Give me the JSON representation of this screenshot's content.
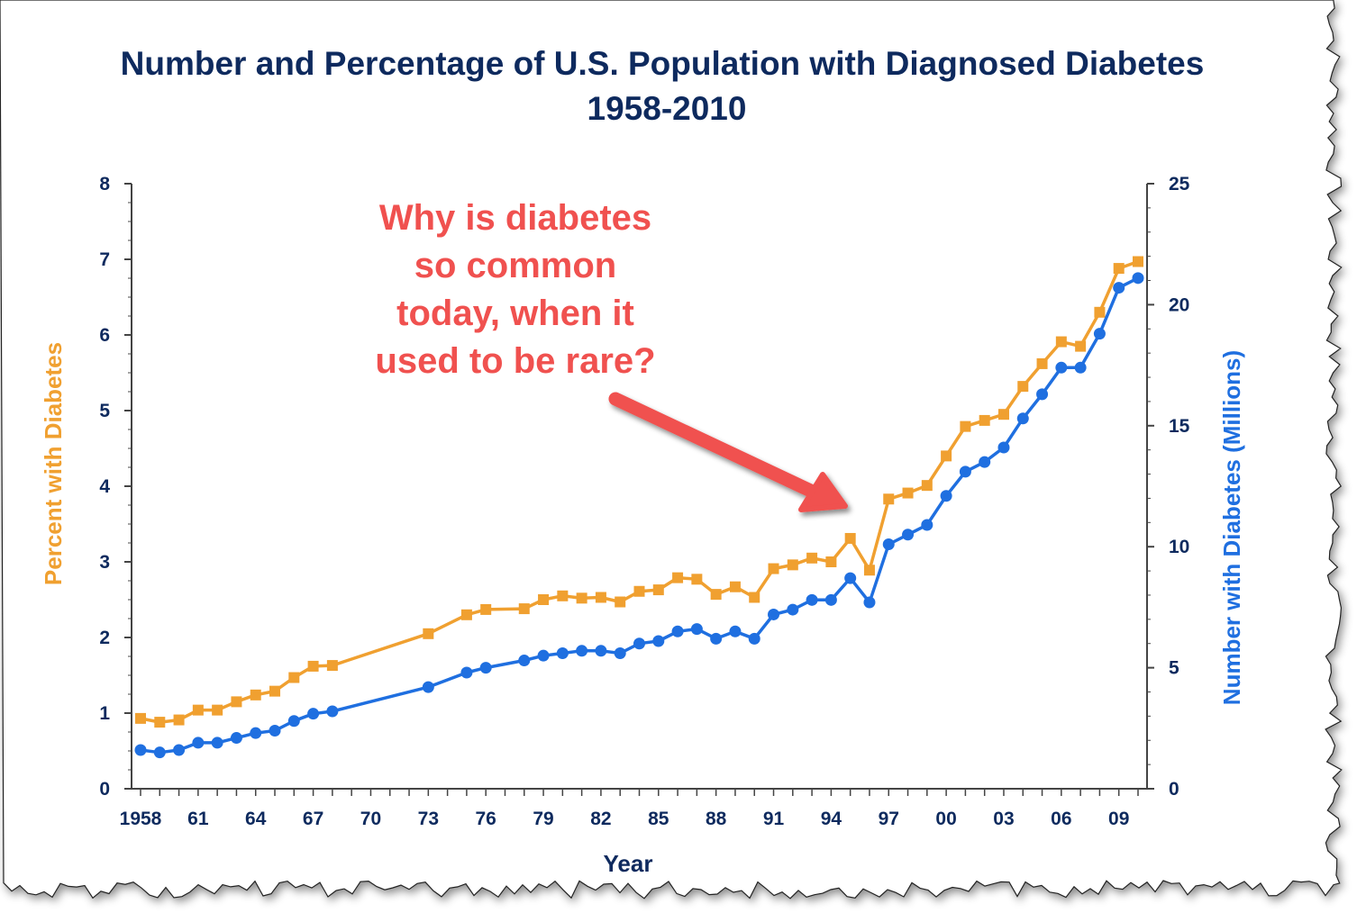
{
  "chart_data": {
    "type": "line",
    "title": "Number and Percentage of U.S. Population with Diagnosed Diabetes",
    "subtitle": "1958-2010",
    "xlabel": "Year",
    "ylabel_left": "Percent with Diabetes",
    "ylabel_right": "Number with Diabetes (Millions)",
    "xlim": [
      1958,
      2010
    ],
    "ylim_left": [
      0,
      8
    ],
    "ylim_right": [
      0,
      25
    ],
    "x_tick_labels": [
      {
        "year": 1958,
        "label": "1958"
      },
      {
        "year": 1961,
        "label": "61"
      },
      {
        "year": 1964,
        "label": "64"
      },
      {
        "year": 1967,
        "label": "67"
      },
      {
        "year": 1970,
        "label": "70"
      },
      {
        "year": 1973,
        "label": "73"
      },
      {
        "year": 1976,
        "label": "76"
      },
      {
        "year": 1979,
        "label": "79"
      },
      {
        "year": 1982,
        "label": "82"
      },
      {
        "year": 1985,
        "label": "85"
      },
      {
        "year": 1988,
        "label": "88"
      },
      {
        "year": 1991,
        "label": "91"
      },
      {
        "year": 1994,
        "label": "94"
      },
      {
        "year": 1997,
        "label": "97"
      },
      {
        "year": 2000,
        "label": "00"
      },
      {
        "year": 2003,
        "label": "03"
      },
      {
        "year": 2006,
        "label": "06"
      },
      {
        "year": 2009,
        "label": "09"
      }
    ],
    "y_left_ticks": [
      "0",
      "1",
      "2",
      "3",
      "4",
      "5",
      "6",
      "7",
      "8"
    ],
    "y_right_ticks": [
      "0",
      "5",
      "10",
      "15",
      "20",
      "25"
    ],
    "grid": false,
    "series": [
      {
        "name": "Percent with Diabetes",
        "axis": "left",
        "color": "#f0a030",
        "marker": "square",
        "x": [
          1958,
          1959,
          1960,
          1961,
          1962,
          1963,
          1964,
          1965,
          1966,
          1967,
          1968,
          1973,
          1975,
          1976,
          1978,
          1979,
          1980,
          1981,
          1982,
          1983,
          1984,
          1985,
          1986,
          1987,
          1988,
          1989,
          1990,
          1991,
          1992,
          1993,
          1994,
          1995,
          1996,
          1997,
          1998,
          1999,
          2000,
          2001,
          2002,
          2003,
          2004,
          2005,
          2006,
          2007,
          2008,
          2009,
          2010
        ],
        "values": [
          0.93,
          0.88,
          0.91,
          1.04,
          1.04,
          1.15,
          1.24,
          1.29,
          1.47,
          1.62,
          1.63,
          2.05,
          2.3,
          2.37,
          2.38,
          2.5,
          2.55,
          2.52,
          2.53,
          2.47,
          2.61,
          2.63,
          2.79,
          2.77,
          2.57,
          2.67,
          2.53,
          2.91,
          2.96,
          3.05,
          3.0,
          3.31,
          2.89,
          3.83,
          3.91,
          4.01,
          4.4,
          4.79,
          4.87,
          4.95,
          5.32,
          5.62,
          5.91,
          5.85,
          6.3,
          6.88,
          6.97
        ]
      },
      {
        "name": "Number with Diabetes (Millions)",
        "axis": "right",
        "color": "#1f6fe0",
        "marker": "circle",
        "x": [
          1958,
          1959,
          1960,
          1961,
          1962,
          1963,
          1964,
          1965,
          1966,
          1967,
          1968,
          1973,
          1975,
          1976,
          1978,
          1979,
          1980,
          1981,
          1982,
          1983,
          1984,
          1985,
          1986,
          1987,
          1988,
          1989,
          1990,
          1991,
          1992,
          1993,
          1994,
          1995,
          1996,
          1997,
          1998,
          1999,
          2000,
          2001,
          2002,
          2003,
          2004,
          2005,
          2006,
          2007,
          2008,
          2009,
          2010
        ],
        "values": [
          1.6,
          1.5,
          1.6,
          1.9,
          1.9,
          2.1,
          2.3,
          2.4,
          2.8,
          3.1,
          3.2,
          4.2,
          4.8,
          5.0,
          5.3,
          5.5,
          5.6,
          5.7,
          5.7,
          5.6,
          6.0,
          6.1,
          6.5,
          6.6,
          6.2,
          6.5,
          6.2,
          7.2,
          7.4,
          7.8,
          7.8,
          8.7,
          7.7,
          10.1,
          10.5,
          10.9,
          12.1,
          13.1,
          13.5,
          14.1,
          15.3,
          16.3,
          17.4,
          17.4,
          18.8,
          20.7,
          21.1
        ]
      }
    ],
    "annotation": {
      "lines": [
        "Why is diabetes",
        "so common",
        "today, when it",
        "used to be rare?"
      ],
      "color": "#f0514f",
      "points_to_year": 1996
    }
  }
}
